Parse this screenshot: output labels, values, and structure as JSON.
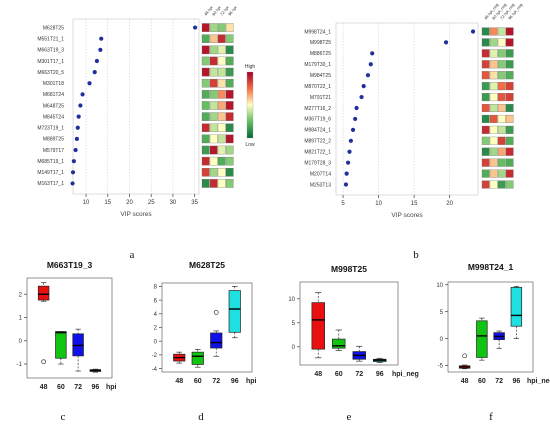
{
  "panel_labels": [
    "a",
    "b",
    "c",
    "d",
    "e",
    "f"
  ],
  "chart_data": [
    {
      "panel": "a",
      "type": "scatter",
      "xlabel": "VIP scores",
      "xticks": [
        10,
        15,
        20,
        25,
        30,
        35
      ],
      "xlim": [
        7,
        36
      ],
      "heatmap_columns": [
        "48 hpi",
        "60 hpi",
        "72 hpi",
        "96 hpi"
      ],
      "legend": {
        "high": "High",
        "low": "Low"
      },
      "features": [
        {
          "name": "M628T25",
          "vip": 35.1,
          "heat": [
            0.95,
            0.35,
            0.3,
            0.55
          ]
        },
        {
          "name": "M551T21_1",
          "vip": 13.5,
          "heat": [
            0.2,
            0.6,
            0.9,
            0.3
          ]
        },
        {
          "name": "M663T19_3",
          "vip": 13.3,
          "heat": [
            0.95,
            0.35,
            0.45,
            0.1
          ]
        },
        {
          "name": "M301T17_1",
          "vip": 12.5,
          "heat": [
            0.3,
            0.9,
            0.5,
            0.2
          ]
        },
        {
          "name": "M663T20_5",
          "vip": 12.0,
          "heat": [
            0.95,
            0.4,
            0.4,
            0.15
          ]
        },
        {
          "name": "M301T18",
          "vip": 10.8,
          "heat": [
            0.3,
            0.85,
            0.55,
            0.2
          ]
        },
        {
          "name": "M681T24",
          "vip": 9.2,
          "heat": [
            0.2,
            0.3,
            0.7,
            0.95
          ]
        },
        {
          "name": "M648T25",
          "vip": 8.7,
          "heat": [
            0.25,
            0.4,
            0.65,
            0.95
          ]
        },
        {
          "name": "M845T24",
          "vip": 8.3,
          "heat": [
            0.2,
            0.35,
            0.6,
            0.9
          ]
        },
        {
          "name": "M723T19_1",
          "vip": 8.1,
          "heat": [
            0.9,
            0.4,
            0.5,
            0.1
          ]
        },
        {
          "name": "M889T25",
          "vip": 7.9,
          "heat": [
            0.2,
            0.5,
            0.4,
            0.95
          ]
        },
        {
          "name": "M579T17",
          "vip": 7.6,
          "heat": [
            0.15,
            0.95,
            0.45,
            0.35
          ]
        },
        {
          "name": "M685T19_1",
          "vip": 7.2,
          "heat": [
            0.9,
            0.5,
            0.2,
            0.3
          ]
        },
        {
          "name": "M149T17_1",
          "vip": 7.0,
          "heat": [
            0.85,
            0.35,
            0.5,
            0.1
          ]
        },
        {
          "name": "M163T17_1",
          "vip": 6.9,
          "heat": [
            0.1,
            0.9,
            0.5,
            0.3
          ]
        }
      ]
    },
    {
      "panel": "b",
      "type": "scatter",
      "xlabel": "VIP scores",
      "xticks": [
        5,
        10,
        15,
        20
      ],
      "xlim": [
        4,
        24
      ],
      "heatmap_columns": [
        "48 hpi_neg",
        "60 hpi_neg",
        "72 hpi_neg",
        "96 hpi_neg"
      ],
      "features": [
        {
          "name": "M998T24_1",
          "vip": 23.3,
          "heat": [
            0.1,
            0.7,
            0.4,
            0.95
          ]
        },
        {
          "name": "M998T25",
          "vip": 19.5,
          "heat": [
            0.1,
            0.35,
            0.5,
            0.95
          ]
        },
        {
          "name": "M886T25",
          "vip": 9.1,
          "heat": [
            0.9,
            0.45,
            0.3,
            0.15
          ]
        },
        {
          "name": "M179T30_1",
          "vip": 8.9,
          "heat": [
            0.85,
            0.6,
            0.3,
            0.15
          ]
        },
        {
          "name": "M984T25",
          "vip": 8.5,
          "heat": [
            0.8,
            0.55,
            0.3,
            0.2
          ]
        },
        {
          "name": "M870T22_1",
          "vip": 7.9,
          "heat": [
            0.15,
            0.45,
            0.75,
            0.85
          ]
        },
        {
          "name": "M791T21",
          "vip": 7.6,
          "heat": [
            0.15,
            0.5,
            0.8,
            0.85
          ]
        },
        {
          "name": "M277T16_2",
          "vip": 6.9,
          "heat": [
            0.8,
            0.4,
            0.6,
            0.1
          ]
        },
        {
          "name": "M367T19_6",
          "vip": 6.7,
          "heat": [
            0.1,
            0.8,
            0.5,
            0.6
          ]
        },
        {
          "name": "M984T24_1",
          "vip": 6.4,
          "heat": [
            0.9,
            0.5,
            0.4,
            0.15
          ]
        },
        {
          "name": "M897T22_2",
          "vip": 6.1,
          "heat": [
            0.3,
            0.5,
            0.85,
            0.2
          ]
        },
        {
          "name": "M821T22_1",
          "vip": 5.9,
          "heat": [
            0.1,
            0.35,
            0.65,
            0.9
          ]
        },
        {
          "name": "M179T28_3",
          "vip": 5.7,
          "heat": [
            0.85,
            0.6,
            0.25,
            0.2
          ]
        },
        {
          "name": "M207T14",
          "vip": 5.5,
          "heat": [
            0.2,
            0.6,
            0.35,
            0.9
          ]
        },
        {
          "name": "M253T13",
          "vip": 5.4,
          "heat": [
            0.85,
            0.5,
            0.15,
            0.3
          ]
        }
      ]
    },
    {
      "panel": "c",
      "type": "box",
      "title": "M663T19_3",
      "categories": [
        "48",
        "60",
        "72",
        "96"
      ],
      "unit": "hpi",
      "ylim": [
        -1.6,
        2.7
      ],
      "yticks": [
        -1,
        0,
        1,
        2
      ],
      "boxes": [
        {
          "whislo": 1.7,
          "q1": 1.75,
          "med": 2.0,
          "q3": 2.35,
          "whishi": 2.5,
          "fliers": [
            -0.9
          ],
          "color": "#e81010"
        },
        {
          "whislo": -1.0,
          "q1": -0.75,
          "med": 0.35,
          "q3": 0.4,
          "whishi": 0.4,
          "fliers": [],
          "color": "#12c412"
        },
        {
          "whislo": -1.3,
          "q1": -0.65,
          "med": -0.2,
          "q3": 0.3,
          "whishi": 0.5,
          "fliers": [],
          "color": "#1010e8"
        },
        {
          "whislo": -1.35,
          "q1": -1.32,
          "med": -1.28,
          "q3": -1.24,
          "whishi": -1.22,
          "fliers": [],
          "color": "#1fe0e0"
        }
      ]
    },
    {
      "panel": "d",
      "type": "box",
      "title": "M628T25",
      "categories": [
        "48",
        "60",
        "72",
        "96"
      ],
      "unit": "hpi",
      "ylim": [
        -4.5,
        8.5
      ],
      "yticks": [
        -4,
        -2,
        0,
        2,
        4,
        6,
        8
      ],
      "boxes": [
        {
          "whislo": -3.2,
          "q1": -2.9,
          "med": -2.4,
          "q3": -1.9,
          "whishi": -1.6,
          "fliers": [],
          "color": "#e81010"
        },
        {
          "whislo": -3.8,
          "q1": -3.4,
          "med": -2.2,
          "q3": -1.6,
          "whishi": -1.2,
          "fliers": [],
          "color": "#12c412"
        },
        {
          "whislo": -2.2,
          "q1": -1.0,
          "med": -0.2,
          "q3": 1.2,
          "whishi": 1.5,
          "fliers": [
            4.2
          ],
          "color": "#1010e8"
        },
        {
          "whislo": 0.5,
          "q1": 1.3,
          "med": 4.7,
          "q3": 7.4,
          "whishi": 8.0,
          "fliers": [],
          "color": "#1fe0e0"
        }
      ]
    },
    {
      "panel": "e",
      "type": "box",
      "title": "M998T25",
      "categories": [
        "48",
        "60",
        "72",
        "96"
      ],
      "unit": "hpi_neg",
      "ylim": [
        -3.8,
        13.5
      ],
      "yticks": [
        0,
        5,
        10
      ],
      "boxes": [
        {
          "whislo": -2.3,
          "q1": -0.5,
          "med": 5.6,
          "q3": 9.2,
          "whishi": 11.3,
          "fliers": [],
          "color": "#e81010"
        },
        {
          "whislo": -0.8,
          "q1": -0.3,
          "med": 0.2,
          "q3": 1.6,
          "whishi": 3.5,
          "fliers": [],
          "color": "#12c412"
        },
        {
          "whislo": -3.0,
          "q1": -2.6,
          "med": -1.8,
          "q3": -1.0,
          "whishi": 0.1,
          "fliers": [],
          "color": "#1010e8"
        },
        {
          "whislo": -3.3,
          "q1": -3.1,
          "med": -2.8,
          "q3": -2.6,
          "whishi": -2.4,
          "fliers": [],
          "color": "#1fe0e0"
        }
      ]
    },
    {
      "panel": "f",
      "type": "box",
      "title": "M998T24_1",
      "categories": [
        "48",
        "60",
        "72",
        "96"
      ],
      "unit": "hpi_neg",
      "ylim": [
        -6.2,
        10.5
      ],
      "yticks": [
        -5,
        0,
        5,
        10
      ],
      "boxes": [
        {
          "whislo": -5.6,
          "q1": -5.5,
          "med": -5.25,
          "q3": -5.05,
          "whishi": -4.9,
          "fliers": [
            -3.2
          ],
          "color": "#e81010"
        },
        {
          "whislo": -4.0,
          "q1": -3.5,
          "med": 0.5,
          "q3": 3.3,
          "whishi": 3.8,
          "fliers": [],
          "color": "#12c412"
        },
        {
          "whislo": -1.8,
          "q1": -0.2,
          "med": 0.4,
          "q3": 1.1,
          "whishi": 1.4,
          "fliers": [],
          "color": "#1010e8"
        },
        {
          "whislo": 0.0,
          "q1": 2.3,
          "med": 4.3,
          "q3": 9.5,
          "whishi": 9.7,
          "fliers": [],
          "color": "#1fe0e0"
        }
      ]
    }
  ]
}
